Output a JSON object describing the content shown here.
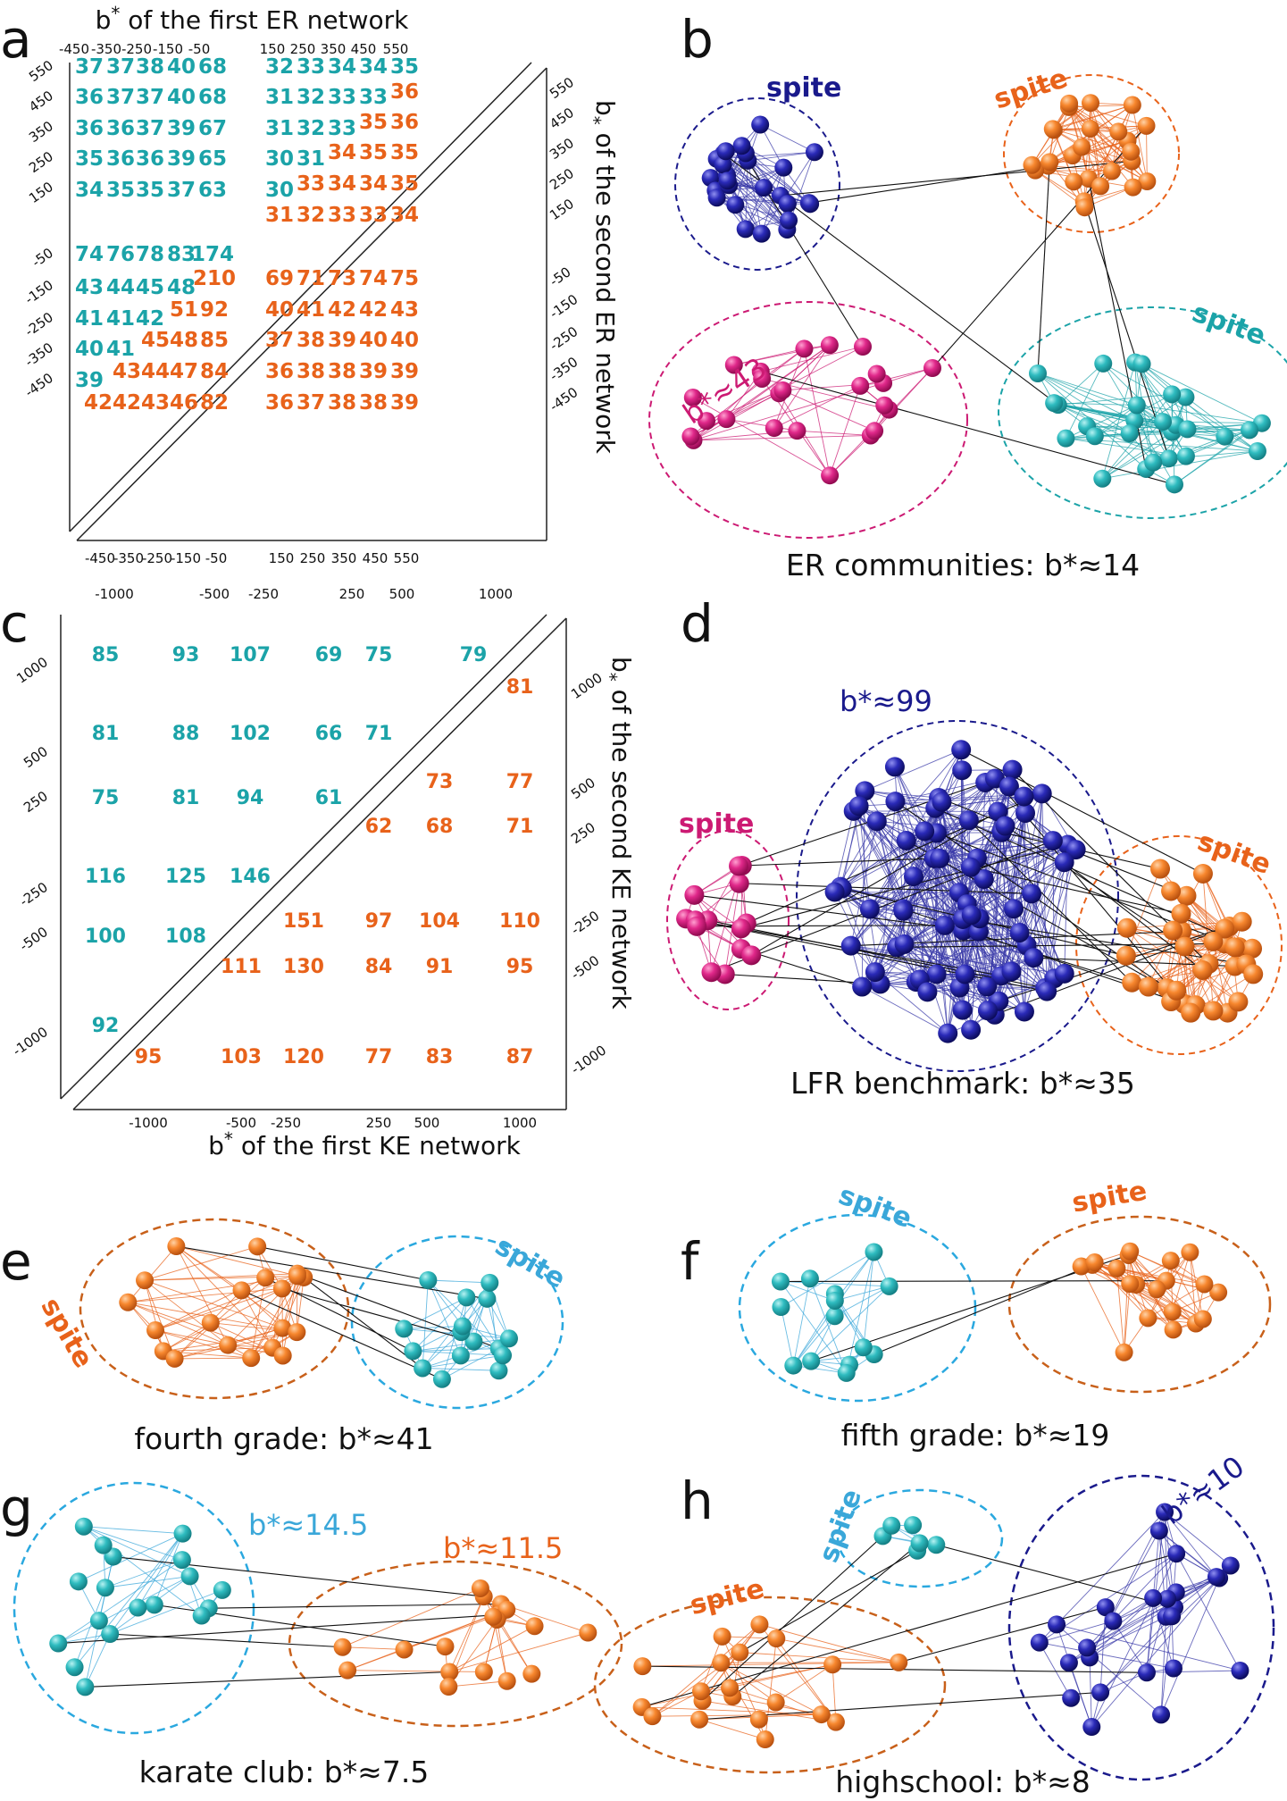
{
  "colors": {
    "teal": "#1ba3a8",
    "orange": "#e8621a",
    "navy": "#1a1a8c",
    "magenta": "#cc1a73",
    "lightblue": "#3aa7d9"
  },
  "panel_labels": {
    "a": "a",
    "b": "b",
    "c": "c",
    "d": "d",
    "e": "e",
    "f": "f",
    "g": "g",
    "h": "h"
  },
  "panel_a": {
    "title_prefix": "b",
    "title_star": "*",
    "title_suffix": " of the first ER network",
    "side_prefix": "b",
    "side_star": "*",
    "side_suffix": " of the second ER network",
    "top_ticks": [
      "-450",
      "-350",
      "-250",
      "-150",
      "-50",
      "150",
      "250",
      "350",
      "450",
      "550"
    ],
    "bottom_ticks": [
      "-450",
      "-350",
      "-250",
      "-150",
      "-50",
      "150",
      "250",
      "350",
      "450",
      "550"
    ],
    "left_ticks": [
      "550",
      "450",
      "350",
      "250",
      "150",
      "-50",
      "-150",
      "-250",
      "-350",
      "-450"
    ],
    "right_ticks": [
      "550",
      "450",
      "350",
      "250",
      "150",
      "-50",
      "-150",
      "-250",
      "-350",
      "-450"
    ],
    "teal_rows": [
      [
        "37",
        "37",
        "38",
        "40",
        "68",
        "32",
        "33",
        "34",
        "34",
        "35"
      ],
      [
        "36",
        "37",
        "37",
        "40",
        "68",
        "31",
        "32",
        "33",
        "33"
      ],
      [
        "36",
        "36",
        "37",
        "39",
        "67",
        "31",
        "32",
        "33"
      ],
      [
        "35",
        "36",
        "36",
        "39",
        "65",
        "30",
        "31"
      ],
      [
        "34",
        "35",
        "35",
        "37",
        "63",
        "30"
      ],
      [
        "74",
        "76",
        "78",
        "83",
        "174"
      ],
      [
        "43",
        "44",
        "45",
        "48"
      ],
      [
        "41",
        "41",
        "42"
      ],
      [
        "40",
        "41"
      ],
      [
        "39"
      ]
    ],
    "orange_rows": [
      [
        "36"
      ],
      [
        "35",
        "36"
      ],
      [
        "34",
        "35",
        "35"
      ],
      [
        "33",
        "34",
        "34",
        "35"
      ],
      [
        "31",
        "32",
        "33",
        "33",
        "34"
      ],
      [
        "210",
        "69",
        "71",
        "73",
        "74",
        "75"
      ],
      [
        "51",
        "92",
        "40",
        "41",
        "42",
        "42",
        "43"
      ],
      [
        "45",
        "48",
        "85",
        "37",
        "38",
        "39",
        "40",
        "40"
      ],
      [
        "43",
        "44",
        "47",
        "84",
        "36",
        "38",
        "38",
        "39",
        "39"
      ],
      [
        "42",
        "42",
        "43",
        "46",
        "82",
        "36",
        "37",
        "38",
        "38",
        "39"
      ]
    ]
  },
  "panel_c": {
    "title_prefix": "b",
    "title_star": "*",
    "title_suffix": " of the first KE network",
    "side_prefix": "b",
    "side_star": "*",
    "side_suffix": " of the second KE network",
    "top_ticks": [
      "-1000",
      "-500",
      "-250",
      "250",
      "500",
      "1000"
    ],
    "bottom_ticks": [
      "-1000",
      "-500",
      "-250",
      "250",
      "500",
      "1000"
    ],
    "left_ticks": [
      "1000",
      "500",
      "250",
      "-250",
      "-500",
      "-1000"
    ],
    "right_ticks": [
      "1000",
      "500",
      "250",
      "-250",
      "-500",
      "-1000"
    ],
    "teal_rows": [
      [
        "85",
        "93",
        "107",
        "69",
        "75",
        "79"
      ],
      [
        "81",
        "88",
        "102",
        "66",
        "71"
      ],
      [
        "75",
        "81",
        "94",
        "61"
      ],
      [
        "116",
        "125",
        "146"
      ],
      [
        "100",
        "108"
      ],
      [
        "92"
      ]
    ],
    "orange_rows": [
      [
        "81"
      ],
      [
        "73",
        "77"
      ],
      [
        "62",
        "68",
        "71"
      ],
      [
        "151",
        "97",
        "104",
        "110"
      ],
      [
        "111",
        "130",
        "84",
        "91",
        "95"
      ],
      [
        "95",
        "103",
        "120",
        "77",
        "83",
        "87"
      ]
    ]
  },
  "graph_labels": {
    "spite": "spite",
    "b_star_43": "b*≈43",
    "b_star_99": "b*≈99",
    "b_star_14_5": "b*≈14.5",
    "b_star_11_5": "b*≈11.5",
    "b_star_10": "b*≈10"
  },
  "captions": {
    "b": "ER communities: b*≈14",
    "d": "LFR benchmark: b*≈35",
    "e": "fourth grade: b*≈41",
    "f": "fifth grade: b*≈19",
    "g": "karate club: b*≈7.5",
    "h": "highschool: b*≈8"
  }
}
